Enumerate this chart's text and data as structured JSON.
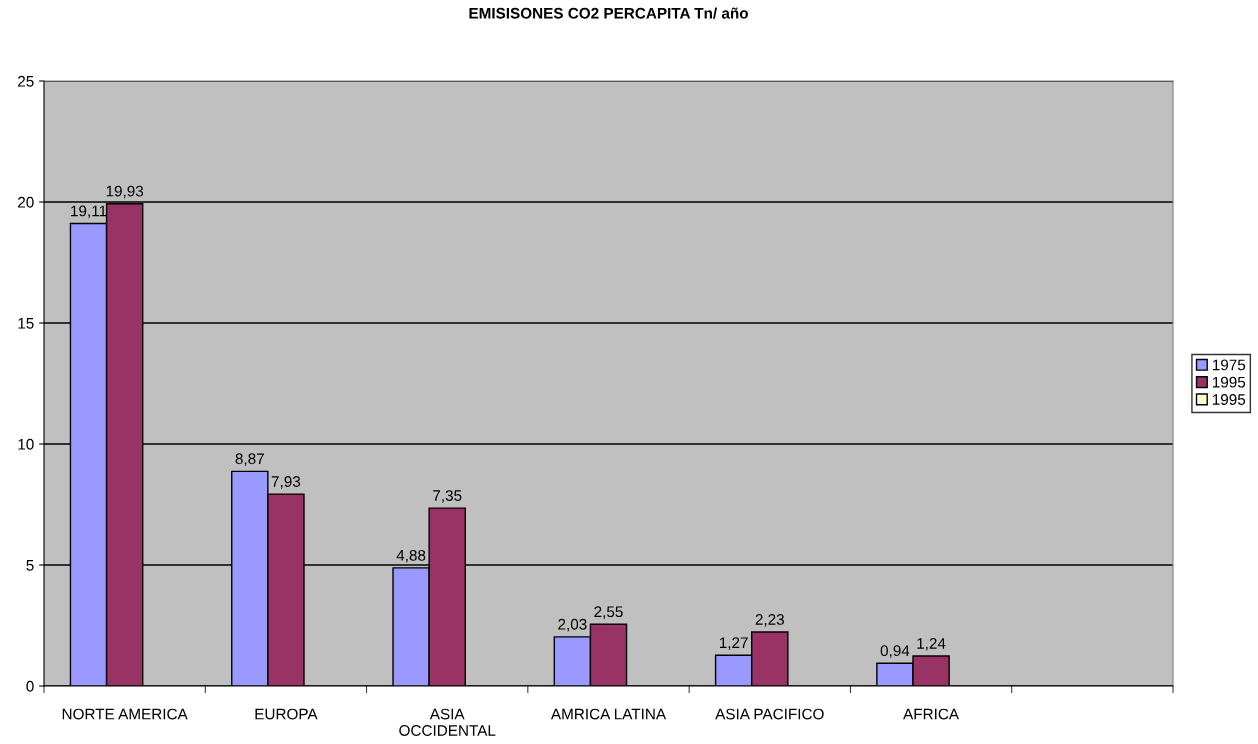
{
  "chart_data": {
    "type": "bar",
    "title": "EMISISONES CO2 PERCAPITA Tn/ año",
    "categories": [
      "NORTE AMERICA",
      "EUROPA",
      "ASIA\nOCCIDENTAL",
      "AMRICA LATINA",
      "ASIA PACIFICO",
      "AFRICA",
      null
    ],
    "series": [
      {
        "name": "1975",
        "color": "#9999ff",
        "values": [
          19.11,
          8.87,
          4.88,
          2.03,
          1.27,
          0.94,
          null
        ],
        "value_labels": [
          "19,11",
          "8,87",
          "4,88",
          "2,03",
          "1,27",
          "0,94",
          null
        ]
      },
      {
        "name": "1995",
        "color": "#993366",
        "values": [
          19.93,
          7.93,
          7.35,
          2.55,
          2.23,
          1.24,
          null
        ],
        "value_labels": [
          "19,93",
          "7,93",
          "7,35",
          "2,55",
          "2,23",
          "1,24",
          null
        ]
      },
      {
        "name": "1995",
        "color": "#ffffcc",
        "values": [
          null,
          null,
          null,
          null,
          null,
          null,
          null
        ]
      }
    ],
    "ylim": [
      0,
      25
    ],
    "yticks": [
      0,
      5,
      10,
      15,
      20,
      25
    ],
    "grid": "y",
    "legend": "right"
  }
}
